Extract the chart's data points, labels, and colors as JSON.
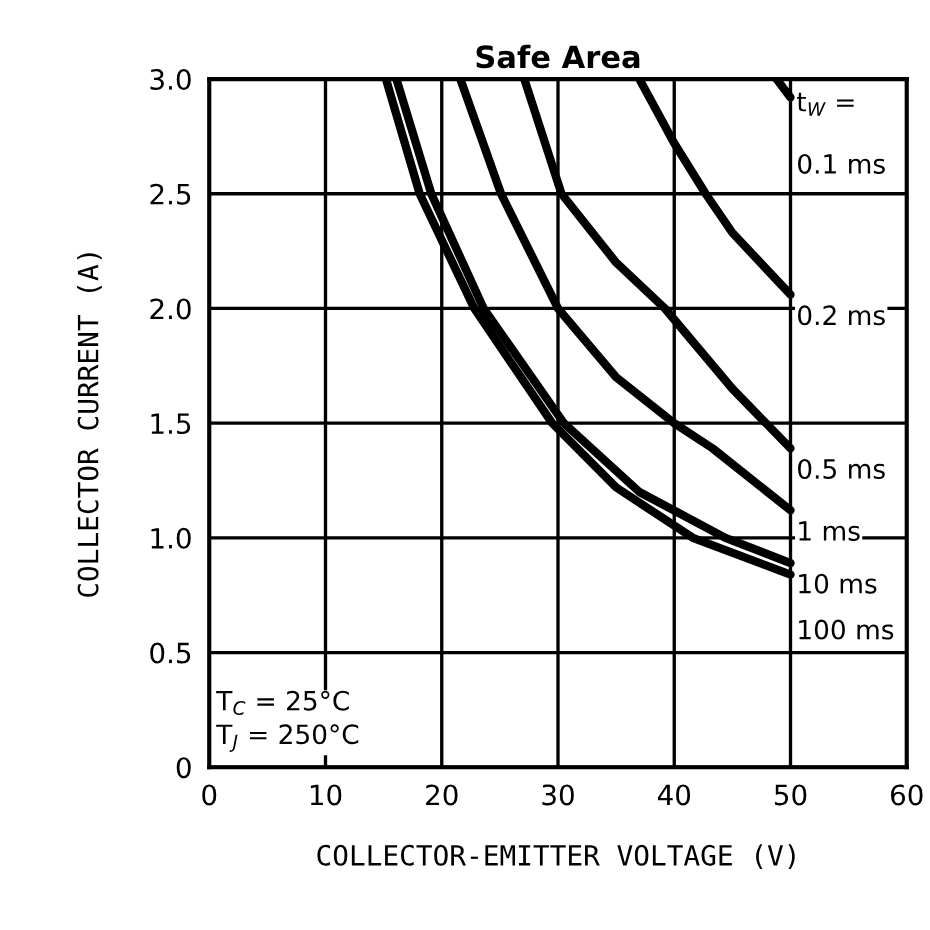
{
  "chart_data": {
    "type": "line",
    "title": "Safe Area",
    "xlabel": "COLLECTOR-EMITTER VOLTAGE (V)",
    "ylabel": "COLLECTOR CURRENT (A)",
    "xlim": [
      0,
      60
    ],
    "ylim": [
      0,
      3.0
    ],
    "xticks": [
      0,
      10,
      20,
      30,
      40,
      50,
      60
    ],
    "yticks": [
      0,
      0.5,
      {
        "value": 1,
        "label": "1.0"
      },
      1.5,
      {
        "value": 2,
        "label": "2.0"
      },
      2.5,
      {
        "value": 3,
        "label": "3.0"
      }
    ],
    "grid": true,
    "legend": false,
    "marker": "none",
    "line_style": "solid",
    "series": [
      {
        "name": "0.1 ms",
        "color": "#000000",
        "x": [
          48.8,
          50
        ],
        "values": [
          3.0,
          2.92
        ]
      },
      {
        "name": "0.2 ms",
        "color": "#000000",
        "x": [
          37,
          40,
          42.7,
          45,
          50
        ],
        "values": [
          3.0,
          2.72,
          2.5,
          2.33,
          2.06
        ]
      },
      {
        "name": "0.5 ms",
        "color": "#000000",
        "x": [
          27.1,
          30.3,
          35,
          39.2,
          45,
          50
        ],
        "values": [
          3.0,
          2.5,
          2.2,
          2.0,
          1.65,
          1.39
        ]
      },
      {
        "name": "1 ms",
        "color": "#000000",
        "x": [
          21.6,
          25.1,
          30,
          35,
          40,
          43.3,
          50
        ],
        "values": [
          3.0,
          2.5,
          2.0,
          1.7,
          1.5,
          1.39,
          1.12
        ]
      },
      {
        "name": "10 ms",
        "color": "#000000",
        "x": [
          16.1,
          19.1,
          23.6,
          30.5,
          37,
          44.4,
          50
        ],
        "values": [
          3.0,
          2.5,
          2.0,
          1.5,
          1.2,
          1.0,
          0.89
        ]
      },
      {
        "name": "100 ms",
        "color": "#000000",
        "x": [
          15.2,
          18.1,
          22.8,
          29.5,
          35,
          41.6,
          50
        ],
        "values": [
          3.0,
          2.5,
          2.0,
          1.5,
          1.22,
          1.0,
          0.84
        ]
      }
    ],
    "annotations": [
      "t$_{W}$ =",
      "T$_{C}$ = 25°C\nT$_{J}$ = 250°C"
    ]
  }
}
